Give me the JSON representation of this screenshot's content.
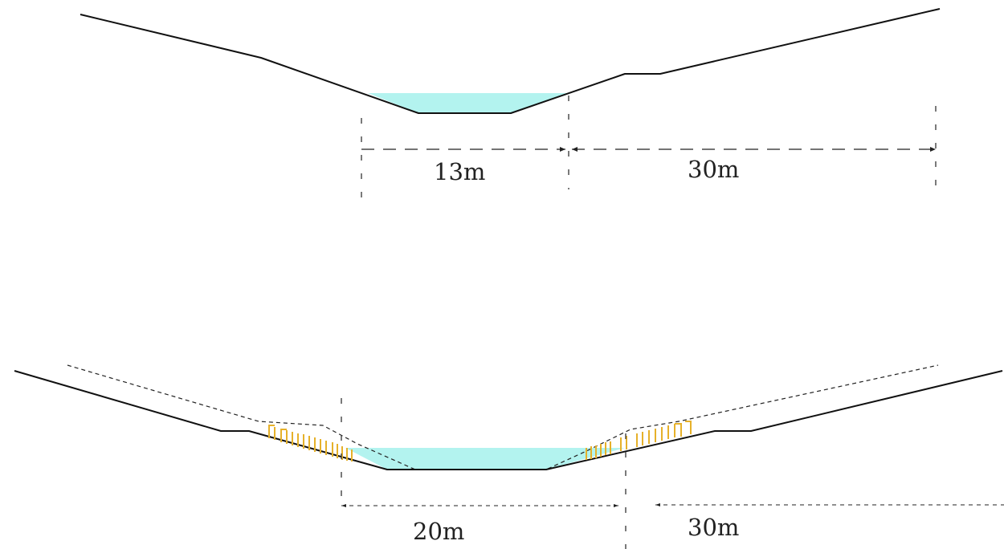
{
  "diagram": {
    "before": {
      "channel_width_label": "13m",
      "buffer_width_label": "30m"
    },
    "after": {
      "channel_width_label": "20m",
      "buffer_width_label": "30m"
    },
    "colors": {
      "water": "#b3f3ef",
      "ground_line": "#111111",
      "dimension_line": "#222222",
      "revegetation_stakes": "#e6b12a"
    }
  }
}
